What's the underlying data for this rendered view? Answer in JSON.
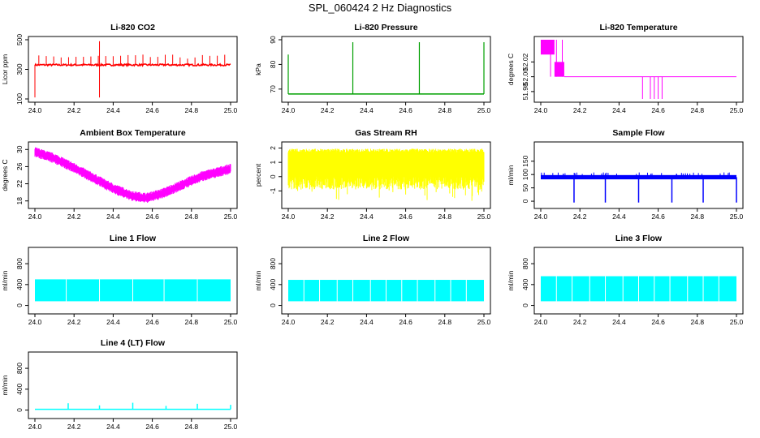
{
  "figure_title": "SPL_060424  2 Hz Diagnostics",
  "chart_data": [
    {
      "id": "co2",
      "type": "line",
      "title": "Li-820 CO2",
      "ylabel": "Licor ppm",
      "color": "#ff0000",
      "xlim": [
        24.0,
        25.0
      ],
      "ylim": [
        100,
        500
      ],
      "x_ticks": [
        24.0,
        24.2,
        24.4,
        24.6,
        24.8,
        25.0
      ],
      "x_tick_labels": [
        "24.0",
        "24.2",
        "24.4",
        "24.6",
        "24.8",
        "25.0"
      ],
      "y_ticks": [
        100,
        300,
        500
      ],
      "y_tick_labels": [
        "100",
        "300",
        "500"
      ],
      "baseline": 330,
      "spikes": [
        {
          "x": 24.33,
          "y": 490
        },
        {
          "x": 24.33,
          "y": 110
        },
        {
          "x": 24.0,
          "y": 110
        }
      ]
    },
    {
      "id": "pressure",
      "type": "line",
      "title": "Li-820 Pressure",
      "ylabel": "kPa",
      "color": "#00a000",
      "xlim": [
        24.0,
        25.0
      ],
      "ylim": [
        66,
        90
      ],
      "x_ticks": [
        24.0,
        24.2,
        24.4,
        24.6,
        24.8,
        25.0
      ],
      "x_tick_labels": [
        "24.0",
        "24.2",
        "24.4",
        "24.6",
        "24.8",
        "25.0"
      ],
      "y_ticks": [
        70,
        80,
        90
      ],
      "y_tick_labels": [
        "70",
        "80",
        "90"
      ],
      "baseline": 68,
      "spikes": [
        {
          "x": 24.0,
          "y": 84
        },
        {
          "x": 24.33,
          "y": 89
        },
        {
          "x": 24.67,
          "y": 89
        },
        {
          "x": 25.0,
          "y": 89
        }
      ]
    },
    {
      "id": "temperature",
      "type": "line",
      "title": "Li-820 Temperature",
      "ylabel": "degrees C",
      "color": "#ff00ff",
      "xlim": [
        24.0,
        25.0
      ],
      "ylim": [
        51.97,
        52.05
      ],
      "x_ticks": [
        24.0,
        24.2,
        24.4,
        24.6,
        24.8,
        25.0
      ],
      "x_tick_labels": [
        "24.0",
        "24.2",
        "24.4",
        "24.6",
        "24.8",
        "25.0"
      ],
      "y_ticks": [
        51.98,
        52.0,
        52.02
      ],
      "y_tick_labels": [
        "51.98",
        "52.00",
        "52.02"
      ],
      "baseline": 52.0
    },
    {
      "id": "box_temp",
      "type": "line",
      "title": "Ambient Box Temperature",
      "ylabel": "degrees C",
      "color": "#ff00ff",
      "xlim": [
        24.0,
        25.0
      ],
      "ylim": [
        17,
        31
      ],
      "x_ticks": [
        24.0,
        24.2,
        24.4,
        24.6,
        24.8,
        25.0
      ],
      "x_tick_labels": [
        "24.0",
        "24.2",
        "24.4",
        "24.6",
        "24.8",
        "25.0"
      ],
      "y_ticks": [
        18,
        22,
        26,
        30
      ],
      "y_tick_labels": [
        "18",
        "22",
        "26",
        "30"
      ],
      "x": [
        24.0,
        24.1,
        24.2,
        24.3,
        24.4,
        24.5,
        24.57,
        24.65,
        24.75,
        24.85,
        24.95,
        25.0
      ],
      "y": [
        29.5,
        28.0,
        25.8,
        23.4,
        21.0,
        19.2,
        18.8,
        19.8,
        21.8,
        23.8,
        25.0,
        25.6
      ]
    },
    {
      "id": "rh",
      "type": "line",
      "title": "Gas Stream RH",
      "ylabel": "percent",
      "color": "#ffff00",
      "xlim": [
        24.0,
        25.0
      ],
      "ylim": [
        -2,
        2.2
      ],
      "x_ticks": [
        24.0,
        24.2,
        24.4,
        24.6,
        24.8,
        25.0
      ],
      "x_tick_labels": [
        "24.0",
        "24.2",
        "24.4",
        "24.6",
        "24.8",
        "25.0"
      ],
      "y_ticks": [
        -1,
        0,
        1,
        2
      ],
      "y_tick_labels": [
        "-1",
        "0",
        "1",
        "2"
      ],
      "band": [
        0.0,
        1.7
      ]
    },
    {
      "id": "sample_flow",
      "type": "line",
      "title": "Sample Flow",
      "ylabel": "ml/min",
      "color": "#0000ff",
      "xlim": [
        24.0,
        25.0
      ],
      "ylim": [
        -15,
        210
      ],
      "x_ticks": [
        24.0,
        24.2,
        24.4,
        24.6,
        24.8,
        25.0
      ],
      "x_tick_labels": [
        "24.0",
        "24.2",
        "24.4",
        "24.6",
        "24.8",
        "25.0"
      ],
      "y_ticks": [
        0,
        50,
        100,
        150
      ],
      "y_tick_labels": [
        "0",
        "50",
        "100",
        "150"
      ],
      "baseline": 90,
      "dips": [
        24.17,
        24.33,
        24.5,
        24.67,
        24.83,
        25.0
      ]
    },
    {
      "id": "line1",
      "type": "line",
      "title": "Line 1 Flow",
      "ylabel": "ml/min",
      "color": "#00ffff",
      "xlim": [
        24.0,
        25.0
      ],
      "ylim": [
        -100,
        1050
      ],
      "x_ticks": [
        24.0,
        24.2,
        24.4,
        24.6,
        24.8,
        25.0
      ],
      "x_tick_labels": [
        "24.0",
        "24.2",
        "24.4",
        "24.6",
        "24.8",
        "25.0"
      ],
      "y_ticks": [
        0,
        400,
        800
      ],
      "y_tick_labels": [
        "0",
        "400",
        "800"
      ],
      "band": [
        80,
        500
      ]
    },
    {
      "id": "line2",
      "type": "line",
      "title": "Line 2 Flow",
      "ylabel": "ml/min",
      "color": "#00ffff",
      "xlim": [
        24.0,
        25.0
      ],
      "ylim": [
        -100,
        1050
      ],
      "x_ticks": [
        24.0,
        24.2,
        24.4,
        24.6,
        24.8,
        25.0
      ],
      "x_tick_labels": [
        "24.0",
        "24.2",
        "24.4",
        "24.6",
        "24.8",
        "25.0"
      ],
      "y_ticks": [
        0,
        400,
        800
      ],
      "y_tick_labels": [
        "0",
        "400",
        "800"
      ],
      "band": [
        80,
        490
      ]
    },
    {
      "id": "line3",
      "type": "line",
      "title": "Line 3 Flow",
      "ylabel": "ml/min",
      "color": "#00ffff",
      "xlim": [
        24.0,
        25.0
      ],
      "ylim": [
        -100,
        1050
      ],
      "x_ticks": [
        24.0,
        24.2,
        24.4,
        24.6,
        24.8,
        25.0
      ],
      "x_tick_labels": [
        "24.0",
        "24.2",
        "24.4",
        "24.6",
        "24.8",
        "25.0"
      ],
      "y_ticks": [
        0,
        400,
        800
      ],
      "y_tick_labels": [
        "0",
        "400",
        "800"
      ],
      "band": [
        80,
        560
      ]
    },
    {
      "id": "line4",
      "type": "line",
      "title": "Line 4 (LT) Flow",
      "ylabel": "ml/min",
      "color": "#00ffff",
      "xlim": [
        24.0,
        25.0
      ],
      "ylim": [
        -100,
        1050
      ],
      "x_ticks": [
        24.0,
        24.2,
        24.4,
        24.6,
        24.8,
        25.0
      ],
      "x_tick_labels": [
        "24.0",
        "24.2",
        "24.4",
        "24.6",
        "24.8",
        "25.0"
      ],
      "y_ticks": [
        0,
        400,
        800
      ],
      "y_tick_labels": [
        "0",
        "400",
        "800"
      ],
      "baseline": 15,
      "spikes": [
        {
          "x": 24.17,
          "y": 130
        },
        {
          "x": 24.33,
          "y": 90
        },
        {
          "x": 24.5,
          "y": 140
        },
        {
          "x": 24.67,
          "y": 80
        },
        {
          "x": 24.83,
          "y": 120
        },
        {
          "x": 25.0,
          "y": 100
        }
      ]
    }
  ]
}
